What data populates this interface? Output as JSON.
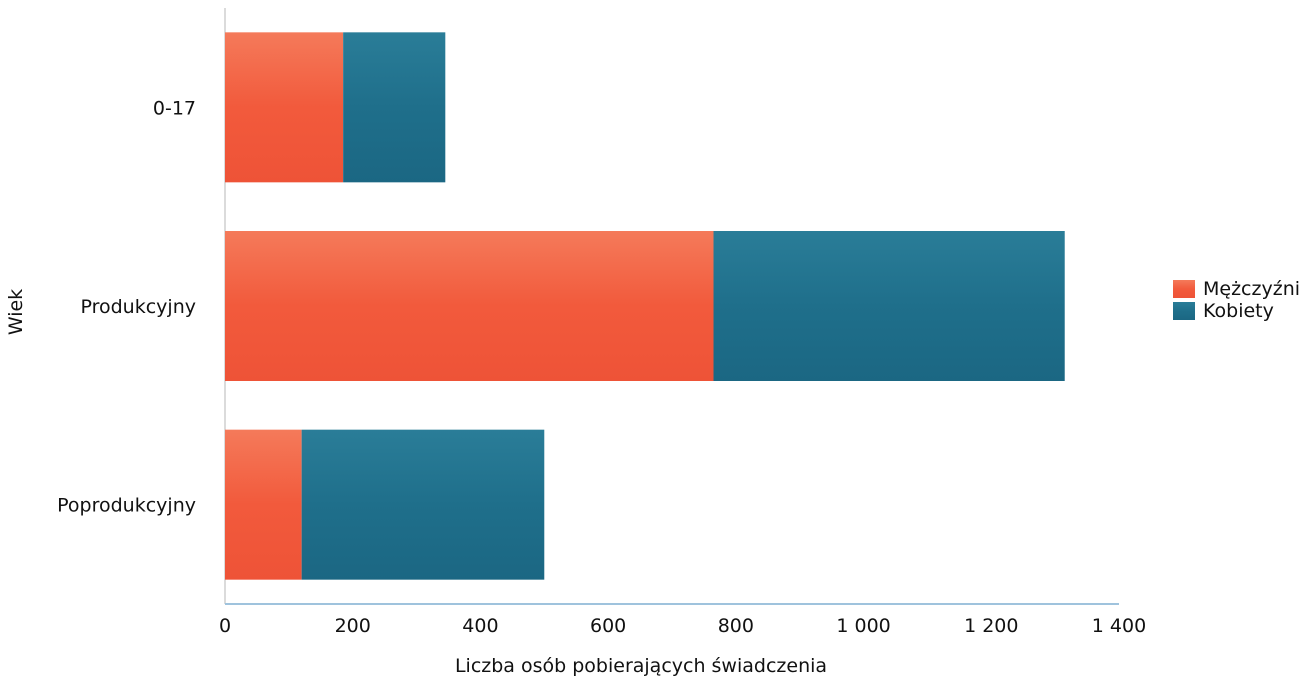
{
  "chart_data": {
    "type": "bar",
    "orientation": "horizontal",
    "stacked": true,
    "categories": [
      "0-17",
      "Produkcyjny",
      "Poprodukcyjny"
    ],
    "series": [
      {
        "name": "Mężczyźni",
        "values": [
          185,
          765,
          120
        ],
        "color": "#f25a3c"
      },
      {
        "name": "Kobiety",
        "values": [
          160,
          550,
          380
        ],
        "color": "#1f6f8b"
      }
    ],
    "xlabel": "Liczba osób pobierających świadczenia",
    "ylabel": "Wiek",
    "xlim": [
      0,
      1400
    ],
    "x_ticks": [
      0,
      200,
      400,
      600,
      800,
      1000,
      1200,
      1400
    ],
    "x_tick_labels": [
      "0",
      "200",
      "400",
      "600",
      "800",
      "1 000",
      "1 200",
      "1 400"
    ],
    "grid": false,
    "legend_position": "right"
  }
}
